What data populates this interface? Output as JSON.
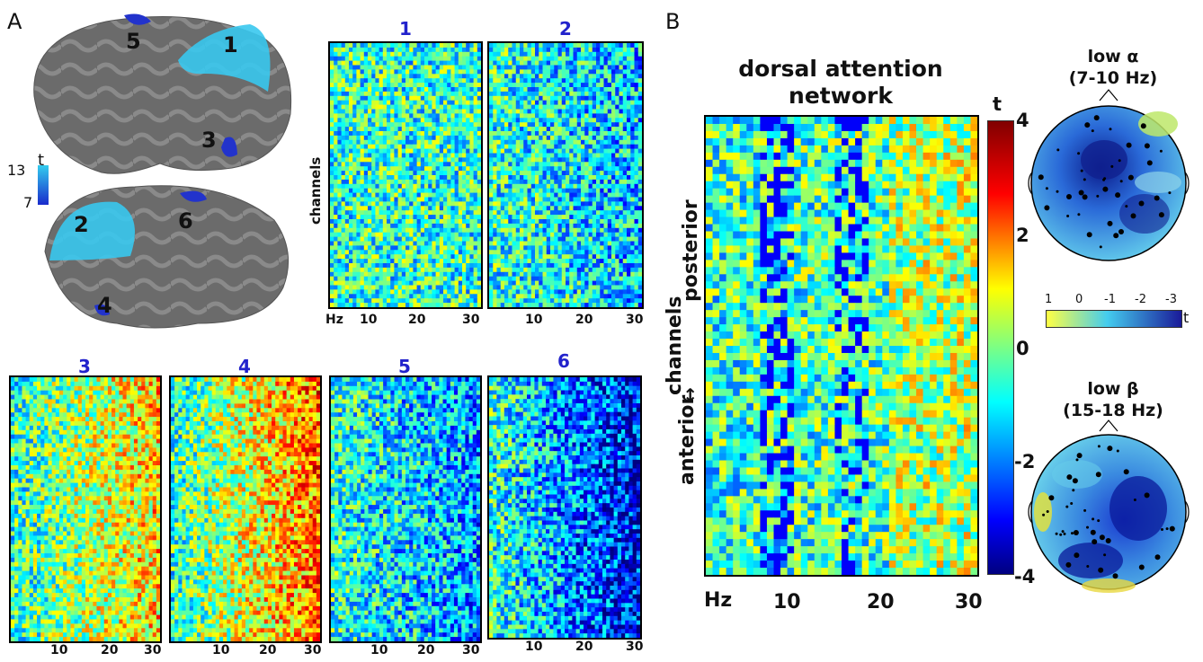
{
  "panels": {
    "a": "A",
    "b": "B"
  },
  "brain": {
    "scale": {
      "max": "13",
      "min": "7",
      "unit": "t",
      "colors": [
        "#33ccee",
        "#1a2bcc"
      ]
    },
    "regions": [
      "1",
      "2",
      "3",
      "4",
      "5",
      "6"
    ]
  },
  "small_maps": {
    "labels": [
      "1",
      "2",
      "3",
      "4",
      "5",
      "6"
    ],
    "ylabel": "channels",
    "xlabel": "Hz",
    "ticks": [
      "10",
      "20",
      "30"
    ]
  },
  "main_map": {
    "title": "dorsal attention network",
    "ylabel_top": "posterior",
    "ylabel_mid": "channels",
    "ylabel_arrow": "↔",
    "ylabel_bottom": "anterior",
    "xlabel": "Hz",
    "ticks": [
      "10",
      "20",
      "30"
    ]
  },
  "colorbar": {
    "unit": "t",
    "ticks": [
      "4",
      "2",
      "0",
      "-2",
      "-4"
    ],
    "range": [
      -4,
      4
    ],
    "colors": [
      "#000080",
      "#0000ff",
      "#00ffff",
      "#ffff00",
      "#ff0000",
      "#800000"
    ]
  },
  "topomaps": {
    "alpha": {
      "title": "low α",
      "range": "(7-10 Hz)"
    },
    "beta": {
      "title": "low β",
      "range": "(15-18 Hz)"
    },
    "scale": {
      "ticks": [
        "1",
        "0",
        "-1",
        "-2",
        "-3"
      ],
      "unit": "t",
      "colors": [
        "#ffff44",
        "#44ccee",
        "#1a1a99"
      ]
    }
  }
}
